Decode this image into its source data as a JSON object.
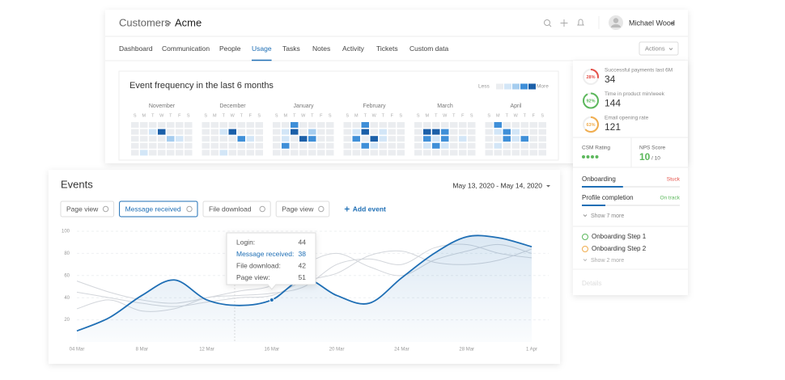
{
  "header": {
    "breadcrumb": [
      "Customers",
      "Acme"
    ],
    "separator": ">",
    "user": "Michael Wood"
  },
  "tabs": {
    "items": [
      "Dashboard",
      "Communication",
      "People",
      "Usage",
      "Tasks",
      "Notes",
      "Activity",
      "Tickets",
      "Custom data"
    ],
    "active": 3,
    "action": "Actions"
  },
  "heatmap": {
    "title": "Event frequency in the last 6 months",
    "less": "Less",
    "more": "More",
    "weekdays": [
      "S",
      "M",
      "T",
      "W",
      "T",
      "F",
      "S"
    ],
    "level_colors": [
      "#ebedf0",
      "#d3e6f7",
      "#a6cdef",
      "#3f8fd8",
      "#1b5fa8"
    ],
    "months": [
      {
        "name": "November",
        "levels": [
          [
            0,
            0,
            0,
            0,
            0,
            0,
            0
          ],
          [
            0,
            0,
            1,
            4,
            0,
            0,
            0
          ],
          [
            0,
            0,
            0,
            0,
            2,
            1,
            0
          ],
          [
            0,
            0,
            0,
            0,
            0,
            0,
            0
          ],
          [
            0,
            1,
            0,
            0,
            0,
            0,
            0
          ]
        ]
      },
      {
        "name": "December",
        "levels": [
          [
            0,
            0,
            0,
            0,
            0,
            0,
            0
          ],
          [
            0,
            0,
            1,
            4,
            0,
            0,
            0
          ],
          [
            0,
            0,
            0,
            0,
            3,
            1,
            0
          ],
          [
            0,
            0,
            0,
            0,
            0,
            0,
            0
          ],
          [
            0,
            0,
            1,
            0,
            0,
            0,
            0
          ]
        ]
      },
      {
        "name": "January",
        "levels": [
          [
            0,
            0,
            3,
            0,
            0,
            0,
            0
          ],
          [
            0,
            1,
            4,
            0,
            2,
            0,
            0
          ],
          [
            0,
            1,
            0,
            4,
            3,
            0,
            0
          ],
          [
            0,
            3,
            0,
            0,
            0,
            0,
            0
          ],
          [
            0,
            0,
            0,
            0,
            0,
            0,
            0
          ]
        ]
      },
      {
        "name": "February",
        "levels": [
          [
            0,
            0,
            3,
            0,
            0,
            0,
            0
          ],
          [
            0,
            1,
            4,
            0,
            1,
            0,
            0
          ],
          [
            0,
            3,
            0,
            4,
            1,
            0,
            0
          ],
          [
            0,
            0,
            3,
            1,
            0,
            0,
            0
          ],
          [
            0,
            0,
            0,
            0,
            0,
            0,
            0
          ]
        ]
      },
      {
        "name": "March",
        "levels": [
          [
            0,
            0,
            0,
            0,
            0,
            0,
            0
          ],
          [
            0,
            4,
            4,
            3,
            0,
            0,
            0
          ],
          [
            0,
            3,
            1,
            3,
            0,
            1,
            0
          ],
          [
            0,
            1,
            3,
            1,
            0,
            0,
            0
          ],
          [
            0,
            0,
            0,
            0,
            0,
            0,
            0
          ]
        ]
      },
      {
        "name": "April",
        "levels": [
          [
            0,
            3,
            0,
            0,
            0,
            0,
            0
          ],
          [
            0,
            1,
            3,
            1,
            0,
            0,
            0
          ],
          [
            0,
            0,
            3,
            1,
            3,
            0,
            0
          ],
          [
            0,
            1,
            0,
            0,
            0,
            0,
            0
          ],
          [
            0,
            0,
            0,
            0,
            0,
            0,
            0
          ]
        ]
      }
    ]
  },
  "sidebar": {
    "metrics": [
      {
        "label": "Successful payments last 6M",
        "value": 34,
        "percent": 28,
        "percent_label": "28%",
        "color": "#e5534b"
      },
      {
        "label": "Time in product min/week",
        "value": 144,
        "percent": 92,
        "percent_label": "92%",
        "color": "#5cb85c"
      },
      {
        "label": "Email opening rate",
        "value": 121,
        "percent": 63,
        "percent_label": "63%",
        "color": "#f0ad4e"
      }
    ],
    "csm": {
      "label": "CSM Rating",
      "rating": 4,
      "color": "#5cb85c"
    },
    "nps": {
      "label": "NPS Score",
      "value": 10,
      "out_of": "/ 10",
      "color": "#5cb85c"
    },
    "progress": [
      {
        "label": "Onboarding",
        "status": "Stuck",
        "status_color": "#e5534b",
        "percent": 42
      },
      {
        "label": "Profile completion",
        "status": "On track",
        "status_color": "#5cb85c",
        "percent": 24
      }
    ],
    "show_more": "Show 7 more",
    "steps": [
      {
        "label": "Onboarding Step 1",
        "color": "#5cb85c"
      },
      {
        "label": "Onboarding Step 2",
        "color": "#f0ad4e"
      }
    ],
    "steps_more": "Show 2 more",
    "details": "Details"
  },
  "events": {
    "title": "Events",
    "date_range": "May 13, 2020 - May 14, 2020",
    "filters": [
      {
        "label": "Page view",
        "active": false
      },
      {
        "label": "Message received",
        "active": true
      },
      {
        "label": "File download",
        "active": false
      },
      {
        "label": "Page view",
        "active": false
      }
    ],
    "add": "Add event",
    "tooltip": {
      "index": 6,
      "rows": [
        {
          "label": "Login:",
          "value": 44
        },
        {
          "label": "Message received:",
          "value": 38,
          "highlight": true
        },
        {
          "label": "File download:",
          "value": 42
        },
        {
          "label": "Page view:",
          "value": 51
        }
      ]
    },
    "chart_data": {
      "type": "line",
      "categories": [
        "04 Mar",
        null,
        "8 Mar",
        null,
        "12 Mar",
        null,
        "16 Mar",
        null,
        "20 Mar",
        null,
        "24 Mar",
        null,
        "28 Mar",
        null,
        "1 Apr"
      ],
      "series": [
        {
          "color": "#d3d6db",
          "values": [
            30,
            38,
            28,
            30,
            40,
            42,
            44,
            50,
            70,
            75,
            70,
            85,
            88,
            80,
            76
          ]
        },
        {
          "color": "#d3d6db",
          "values": [
            45,
            40,
            35,
            32,
            36,
            40,
            42,
            55,
            62,
            78,
            82,
            72,
            70,
            74,
            84
          ]
        },
        {
          "color": "#d3d6db",
          "values": [
            55,
            45,
            38,
            35,
            40,
            46,
            51,
            70,
            80,
            68,
            60,
            74,
            82,
            88,
            80
          ]
        },
        {
          "color": "#1f6fb5",
          "area": true,
          "values": [
            10,
            22,
            42,
            56,
            38,
            33,
            38,
            57,
            42,
            35,
            58,
            80,
            95,
            94,
            86
          ]
        }
      ],
      "ylim": [
        0,
        100
      ],
      "yticks": [
        20,
        40,
        60,
        80,
        100
      ],
      "grid": true
    }
  }
}
